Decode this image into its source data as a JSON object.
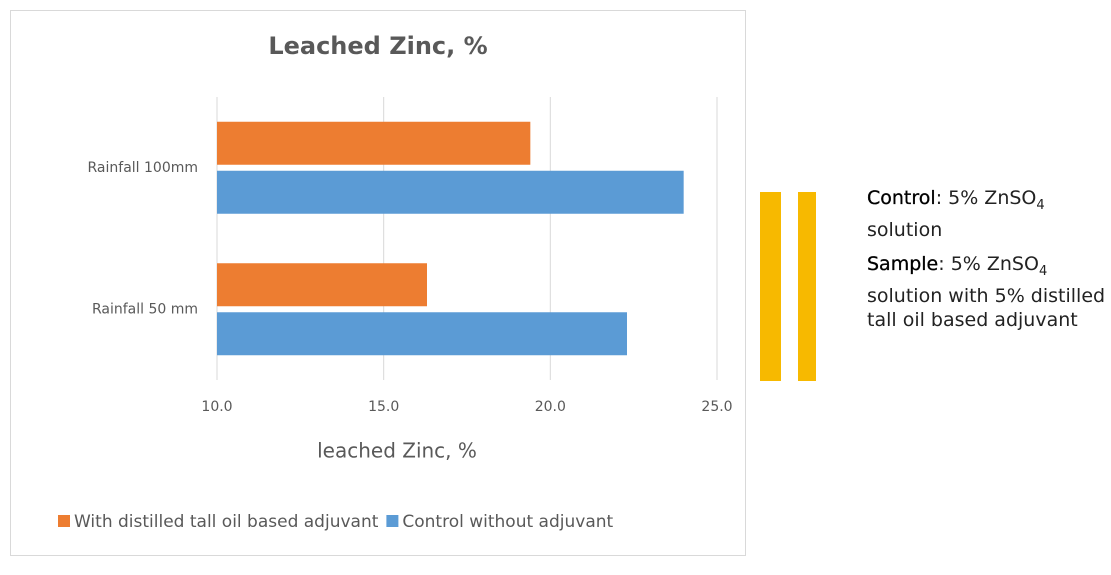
{
  "chart_data": {
    "type": "bar",
    "orientation": "horizontal",
    "title": "Leached Zinc, %",
    "x_label": "leached Zinc, %",
    "categories": [
      "Rainfall 100mm",
      "Rainfall 50 mm"
    ],
    "series": [
      {
        "name": "With distilled tall oil based adjuvant",
        "color": "#ed7d31",
        "values": [
          19.4,
          16.3
        ]
      },
      {
        "name": "Control without adjuvant",
        "color": "#5b9bd5",
        "values": [
          24.0,
          22.3
        ]
      }
    ],
    "xlim": [
      10,
      25
    ],
    "xticks": [
      {
        "value": 10,
        "label": "10.0"
      },
      {
        "value": 15,
        "label": "15.0"
      },
      {
        "value": 20,
        "label": "20.0"
      },
      {
        "value": 25,
        "label": "25.0"
      }
    ],
    "grid": true,
    "legend": "bottom"
  },
  "notes": [
    {
      "label": "Control",
      "before": ": 5% ZnSO",
      "sub": "4",
      "after": "solution"
    },
    {
      "label": "Sample",
      "before": ": 5% ZnSO",
      "sub": "4",
      "after": "solution with 5% distilled tall oil  based adjuvant"
    }
  ]
}
